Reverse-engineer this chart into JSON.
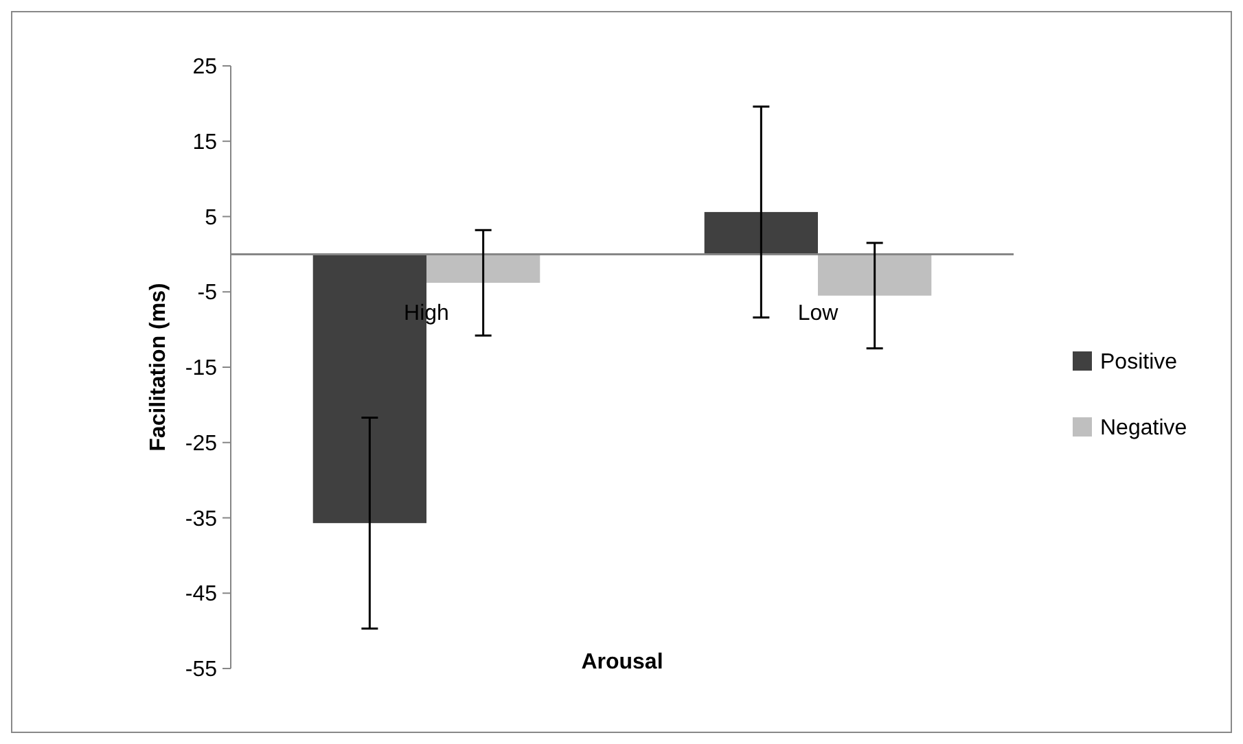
{
  "chart_data": {
    "type": "bar",
    "xlabel": "Arousal",
    "ylabel": "Facilitation (ms)",
    "categories": [
      "High",
      "Low"
    ],
    "series": [
      {
        "name": "Positive",
        "color": "#404040",
        "values": [
          -35.7,
          5.6
        ],
        "errors": [
          14,
          14
        ]
      },
      {
        "name": "Negative",
        "color": "#bfbfbf",
        "values": [
          -3.8,
          -5.5
        ],
        "errors": [
          7,
          7
        ]
      }
    ],
    "ylim": [
      -55,
      25
    ],
    "yticks": [
      -55,
      -45,
      -35,
      -25,
      -15,
      -5,
      5,
      15,
      25
    ],
    "grid": false,
    "legend": "right"
  }
}
